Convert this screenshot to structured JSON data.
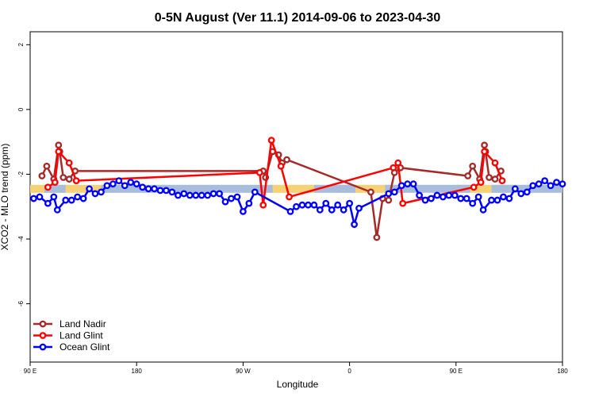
{
  "chart_data": {
    "type": "line",
    "title": "0-5N August (Ver 11.1)   2014-09-06 to 2023-04-30",
    "xlabel": "Longitude",
    "ylabel": "XCO2 - MLO trend (ppm)",
    "x_ticks": [
      {
        "value": 0,
        "label": "90 E"
      },
      {
        "value": 90,
        "label": "180"
      },
      {
        "value": 180,
        "label": "90 W"
      },
      {
        "value": 270,
        "label": "0"
      },
      {
        "value": 360,
        "label": "90 E"
      },
      {
        "value": 450,
        "label": "180"
      }
    ],
    "y_ticks": [
      2,
      0,
      -2,
      -4,
      -6
    ],
    "xlim": [
      0,
      450
    ],
    "ylim": [
      -7.8,
      2.4
    ],
    "grid": false,
    "legend_position": "bottom-left",
    "bands": [
      {
        "name": "land",
        "color": "#F6D275",
        "segments": [
          [
            0,
            68
          ],
          [
            200,
            245
          ],
          [
            260,
            315
          ],
          [
            360,
            410
          ]
        ]
      },
      {
        "name": "ocean",
        "color": "#A7BDDB",
        "segments": [
          [
            12,
            30
          ],
          [
            60,
            205
          ],
          [
            240,
            275
          ],
          [
            300,
            372
          ],
          [
            390,
            450
          ]
        ]
      }
    ],
    "band_y": -2.45,
    "series": [
      {
        "name": "Land Nadir",
        "color": "#A52A2A",
        "points": [
          [
            10,
            -2.05
          ],
          [
            14,
            -1.75
          ],
          [
            20,
            -2.15
          ],
          [
            24,
            -1.1
          ],
          [
            25,
            -1.3
          ],
          [
            28,
            -2.1
          ],
          [
            33,
            -2.15
          ],
          [
            38,
            -1.9
          ],
          [
            197,
            -1.9
          ],
          [
            199,
            -2.1
          ],
          [
            205,
            -1.3
          ],
          [
            210,
            -1.4
          ],
          [
            213,
            -1.65
          ],
          [
            217,
            -1.55
          ],
          [
            288,
            -2.55
          ],
          [
            293,
            -3.95
          ],
          [
            298,
            -2.75
          ],
          [
            303,
            -2.8
          ],
          [
            308,
            -1.95
          ],
          [
            313,
            -1.8
          ],
          [
            370,
            -2.05
          ],
          [
            374,
            -1.75
          ],
          [
            380,
            -2.15
          ],
          [
            384,
            -1.1
          ],
          [
            385,
            -1.3
          ],
          [
            388,
            -2.1
          ],
          [
            393,
            -2.15
          ],
          [
            398,
            -1.9
          ]
        ]
      },
      {
        "name": "Land Glint",
        "color": "#FF0000",
        "points": [
          [
            15,
            -2.4
          ],
          [
            21,
            -2.25
          ],
          [
            24,
            -1.3
          ],
          [
            33,
            -1.65
          ],
          [
            39,
            -2.2
          ],
          [
            194,
            -1.95
          ],
          [
            197,
            -2.95
          ],
          [
            204,
            -0.95
          ],
          [
            212,
            -1.75
          ],
          [
            219,
            -2.7
          ],
          [
            307,
            -1.8
          ],
          [
            311,
            -1.65
          ],
          [
            315,
            -2.9
          ],
          [
            375,
            -2.4
          ],
          [
            381,
            -2.25
          ],
          [
            384,
            -1.3
          ],
          [
            393,
            -1.65
          ],
          [
            399,
            -2.2
          ]
        ]
      },
      {
        "name": "Ocean Glint",
        "color": "#0000FF",
        "points": [
          [
            3,
            -2.75
          ],
          [
            8,
            -2.7
          ],
          [
            15,
            -2.9
          ],
          [
            20,
            -2.7
          ],
          [
            23,
            -3.1
          ],
          [
            30,
            -2.8
          ],
          [
            35,
            -2.8
          ],
          [
            40,
            -2.7
          ],
          [
            45,
            -2.75
          ],
          [
            50,
            -2.45
          ],
          [
            55,
            -2.6
          ],
          [
            60,
            -2.55
          ],
          [
            65,
            -2.35
          ],
          [
            70,
            -2.3
          ],
          [
            75,
            -2.2
          ],
          [
            80,
            -2.35
          ],
          [
            85,
            -2.25
          ],
          [
            90,
            -2.3
          ],
          [
            95,
            -2.4
          ],
          [
            100,
            -2.45
          ],
          [
            105,
            -2.45
          ],
          [
            110,
            -2.5
          ],
          [
            115,
            -2.5
          ],
          [
            120,
            -2.55
          ],
          [
            125,
            -2.65
          ],
          [
            130,
            -2.6
          ],
          [
            135,
            -2.65
          ],
          [
            140,
            -2.65
          ],
          [
            145,
            -2.65
          ],
          [
            150,
            -2.65
          ],
          [
            155,
            -2.6
          ],
          [
            160,
            -2.6
          ],
          [
            165,
            -2.85
          ],
          [
            170,
            -2.75
          ],
          [
            175,
            -2.7
          ],
          [
            180,
            -3.15
          ],
          [
            185,
            -2.9
          ],
          [
            190,
            -2.55
          ],
          [
            220,
            -3.15
          ],
          [
            225,
            -3.0
          ],
          [
            230,
            -2.95
          ],
          [
            235,
            -2.95
          ],
          [
            240,
            -2.95
          ],
          [
            245,
            -3.1
          ],
          [
            250,
            -2.9
          ],
          [
            255,
            -3.1
          ],
          [
            260,
            -2.95
          ],
          [
            265,
            -3.1
          ],
          [
            270,
            -2.9
          ],
          [
            274,
            -3.55
          ],
          [
            278,
            -3.05
          ],
          [
            303,
            -2.6
          ],
          [
            308,
            -2.55
          ],
          [
            314,
            -2.35
          ],
          [
            319,
            -2.3
          ],
          [
            324,
            -2.3
          ],
          [
            329,
            -2.65
          ],
          [
            334,
            -2.8
          ],
          [
            339,
            -2.75
          ],
          [
            344,
            -2.65
          ],
          [
            349,
            -2.7
          ],
          [
            354,
            -2.65
          ],
          [
            359,
            -2.65
          ],
          [
            364,
            -2.75
          ],
          [
            369,
            -2.75
          ],
          [
            374,
            -2.9
          ],
          [
            379,
            -2.7
          ],
          [
            383,
            -3.1
          ],
          [
            390,
            -2.8
          ],
          [
            395,
            -2.8
          ],
          [
            400,
            -2.7
          ],
          [
            405,
            -2.75
          ],
          [
            410,
            -2.45
          ],
          [
            415,
            -2.6
          ],
          [
            420,
            -2.55
          ],
          [
            425,
            -2.35
          ],
          [
            430,
            -2.3
          ],
          [
            435,
            -2.2
          ],
          [
            440,
            -2.35
          ],
          [
            445,
            -2.25
          ],
          [
            450,
            -2.3
          ]
        ]
      }
    ]
  }
}
